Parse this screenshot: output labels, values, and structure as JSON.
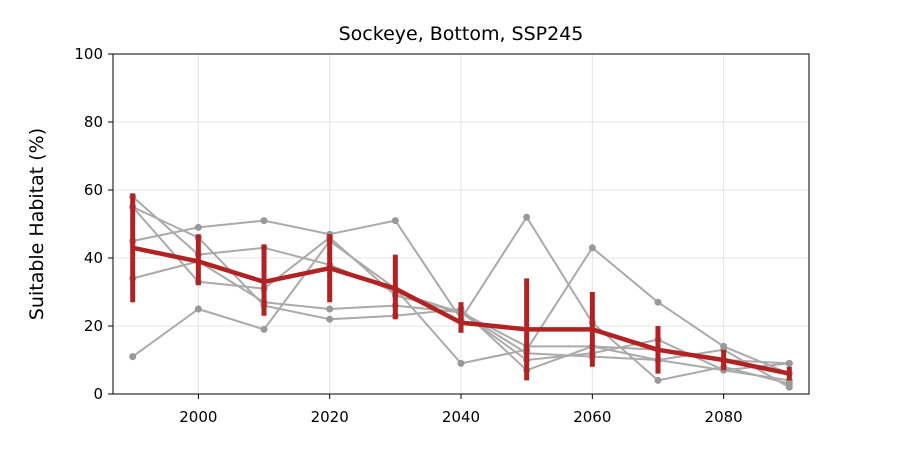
{
  "chart_data": {
    "type": "line",
    "title": "Sockeye, Bottom, SSP245",
    "xlabel": "",
    "ylabel": "Suitable Habitat (%)",
    "xlim": [
      1987,
      2093
    ],
    "ylim": [
      0,
      100
    ],
    "xticks": [
      2000,
      2020,
      2040,
      2060,
      2080
    ],
    "yticks": [
      0,
      20,
      40,
      60,
      80,
      100
    ],
    "grid": true,
    "x": [
      1990,
      2000,
      2010,
      2020,
      2030,
      2040,
      2050,
      2060,
      2070,
      2080,
      2090
    ],
    "series": [
      {
        "values": [
          58,
          41,
          43,
          38,
          30,
          24,
          10,
          12,
          16,
          7,
          4
        ],
        "role": "model"
      },
      {
        "values": [
          55,
          33,
          31,
          46,
          29,
          24,
          12,
          11,
          10,
          7,
          9
        ],
        "role": "model"
      },
      {
        "values": [
          45,
          49,
          51,
          47,
          51,
          22,
          52,
          21,
          4,
          8,
          3
        ],
        "role": "model"
      },
      {
        "values": [
          34,
          39,
          27,
          25,
          26,
          24,
          14,
          14,
          10,
          13,
          2
        ],
        "role": "model"
      },
      {
        "values": [
          11,
          25,
          19,
          45,
          31,
          9,
          13,
          43,
          27,
          14,
          6
        ],
        "role": "model"
      },
      {
        "values": [
          55,
          46,
          26,
          22,
          23,
          25,
          7,
          14,
          13,
          10,
          9
        ],
        "role": "model"
      },
      {
        "values": [
          43,
          39,
          33,
          37,
          31,
          21,
          19,
          19,
          13,
          10,
          6
        ],
        "role": "mean",
        "err_low": [
          27,
          32,
          23,
          27,
          22,
          18,
          4,
          8,
          6,
          7,
          4
        ],
        "err_high": [
          59,
          47,
          44,
          47,
          41,
          27,
          34,
          30,
          20,
          13,
          8
        ]
      }
    ],
    "colors": {
      "model": "#aaaaaa",
      "mean": "#b22222"
    }
  }
}
